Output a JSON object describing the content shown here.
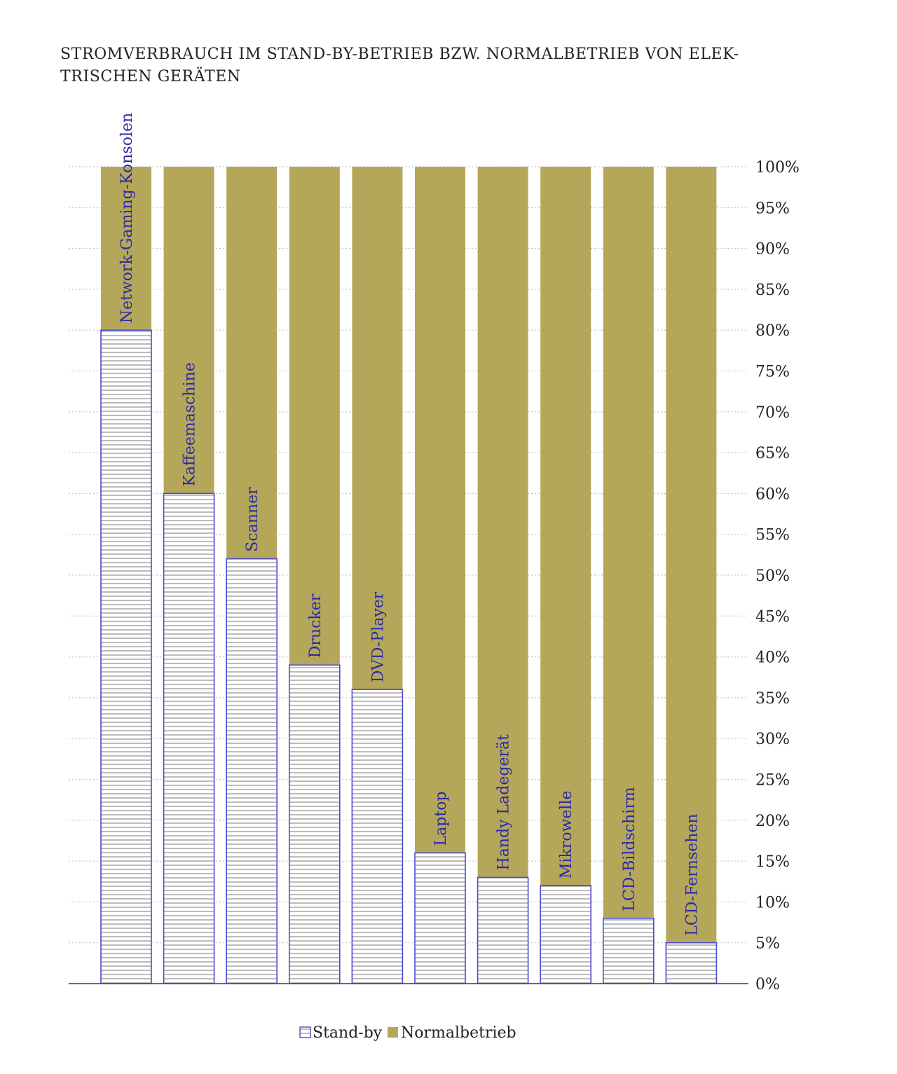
{
  "chart_data": {
    "type": "bar",
    "stacked": true,
    "title_line1": "STROMVERBRAUCH IM STAND-BY-BETRIEB BZW. NORMALBETRIEB VON ELEK-",
    "title_line2": "TRISCHEN GERÄTEN",
    "categories": [
      "Network-Gaming-Konsolen",
      "Kaffeemaschine",
      "Scanner",
      "Drucker",
      "DVD-Player",
      "Laptop",
      "Handy Ladegerät",
      "Mikrowelle",
      "LCD-Bildschirm",
      "LCD-Fernsehen"
    ],
    "series": [
      {
        "name": "Stand-by",
        "values": [
          80,
          60,
          52,
          39,
          36,
          16,
          13,
          12,
          8,
          5
        ],
        "color": "#ffffff",
        "stroke": "#4b4bd0",
        "pattern": "horizontal-lines"
      },
      {
        "name": "Normalbetrieb",
        "values": [
          20,
          40,
          48,
          61,
          64,
          84,
          87,
          88,
          92,
          95
        ],
        "color": "#b5a75a"
      }
    ],
    "ylim": [
      0,
      100
    ],
    "ytick_values": [
      0,
      5,
      10,
      15,
      20,
      25,
      30,
      35,
      40,
      45,
      50,
      55,
      60,
      65,
      70,
      75,
      80,
      85,
      90,
      95,
      100
    ],
    "ytick_labels": [
      "0%",
      "5%",
      "10%",
      "15%",
      "20%",
      "25%",
      "30%",
      "35%",
      "40%",
      "45%",
      "50%",
      "55%",
      "60%",
      "65%",
      "70%",
      "75%",
      "80%",
      "85%",
      "90%",
      "95%",
      "100%"
    ],
    "y_axis_side": "right",
    "grid": true,
    "grid_style": "dotted",
    "legend_position": "bottom-center",
    "category_labels_rotated": true,
    "category_label_color": "#2a2aa8"
  }
}
